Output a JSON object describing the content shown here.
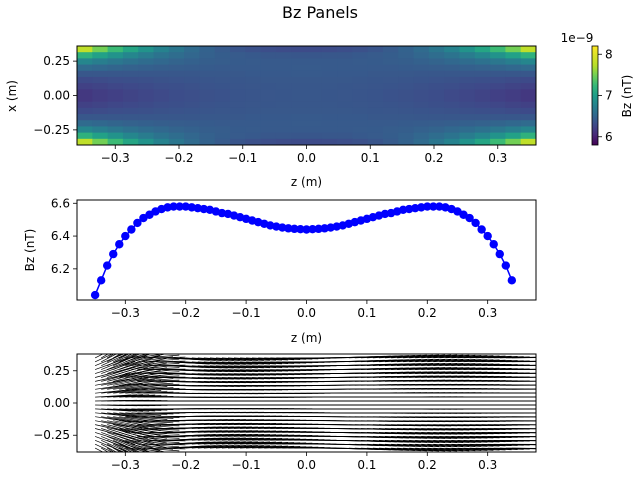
{
  "figure": {
    "title": "Bz Panels"
  },
  "chart_data": [
    {
      "type": "heatmap",
      "xlabel": "z (m)",
      "ylabel": "x (m)",
      "xlim": [
        -0.36,
        0.36
      ],
      "ylim": [
        -0.36,
        0.36
      ],
      "x_ticks": [
        -0.3,
        -0.2,
        -0.1,
        0.0,
        0.1,
        0.2,
        0.3
      ],
      "x_tick_labels": [
        "−0.3",
        "−0.2",
        "−0.1",
        "0.0",
        "0.1",
        "0.2",
        "0.3"
      ],
      "y_ticks": [
        0.25,
        0.0,
        -0.25
      ],
      "y_tick_labels": [
        "0.25",
        "0.00",
        "−0.25"
      ],
      "grid_size": [
        30,
        16
      ],
      "colormap": "viridis",
      "colorbar": {
        "label": "Bz (nT)",
        "offset_text": "1e−9",
        "range": [
          5.8,
          8.2
        ],
        "ticks": [
          6,
          7,
          8
        ],
        "tick_labels": [
          "6",
          "7",
          "8"
        ]
      },
      "grid": false
    },
    {
      "type": "line",
      "xlabel": "z (m)",
      "ylabel": "Bz (nT)",
      "xlim": [
        -0.38,
        0.38
      ],
      "ylim": [
        6.01,
        6.62
      ],
      "x_ticks": [
        -0.3,
        -0.2,
        -0.1,
        0.0,
        0.1,
        0.2,
        0.3
      ],
      "x_tick_labels": [
        "−0.3",
        "−0.2",
        "−0.1",
        "0.0",
        "0.1",
        "0.2",
        "0.3"
      ],
      "y_ticks": [
        6.2,
        6.4,
        6.6
      ],
      "y_tick_labels": [
        "6.2",
        "6.4",
        "6.6"
      ],
      "marker": "circle",
      "color": "#0000ff",
      "series": [
        {
          "x": [
            -0.35,
            -0.34,
            -0.33,
            -0.32,
            -0.31,
            -0.3,
            -0.29,
            -0.28,
            -0.27,
            -0.26,
            -0.25,
            -0.24,
            -0.23,
            -0.22,
            -0.21,
            -0.2,
            -0.19,
            -0.18,
            -0.17,
            -0.16,
            -0.15,
            -0.14,
            -0.13,
            -0.12,
            -0.11,
            -0.1,
            -0.09,
            -0.08,
            -0.07,
            -0.06,
            -0.05,
            -0.04,
            -0.03,
            -0.02,
            -0.01,
            0.0,
            0.01,
            0.02,
            0.03,
            0.04,
            0.05,
            0.06,
            0.07,
            0.08,
            0.09,
            0.1,
            0.11,
            0.12,
            0.13,
            0.14,
            0.15,
            0.16,
            0.17,
            0.18,
            0.19,
            0.2,
            0.21,
            0.22,
            0.23,
            0.24,
            0.25,
            0.26,
            0.27,
            0.28,
            0.29,
            0.3,
            0.31,
            0.32,
            0.33,
            0.34
          ],
          "y": [
            6.04,
            6.13,
            6.22,
            6.29,
            6.35,
            6.4,
            6.44,
            6.48,
            6.51,
            6.53,
            6.55,
            6.565,
            6.575,
            6.58,
            6.58,
            6.58,
            6.575,
            6.57,
            6.565,
            6.56,
            6.55,
            6.54,
            6.535,
            6.525,
            6.515,
            6.505,
            6.495,
            6.485,
            6.475,
            6.465,
            6.458,
            6.452,
            6.447,
            6.444,
            6.442,
            6.44,
            6.442,
            6.444,
            6.447,
            6.452,
            6.458,
            6.465,
            6.475,
            6.485,
            6.495,
            6.505,
            6.515,
            6.525,
            6.535,
            6.54,
            6.55,
            6.56,
            6.565,
            6.57,
            6.575,
            6.58,
            6.58,
            6.58,
            6.575,
            6.565,
            6.55,
            6.53,
            6.51,
            6.48,
            6.44,
            6.4,
            6.35,
            6.29,
            6.22,
            6.13
          ]
        }
      ],
      "grid": false
    },
    {
      "type": "quiver",
      "xlim": [
        -0.38,
        0.38
      ],
      "ylim": [
        -0.38,
        0.38
      ],
      "x_ticks": [
        -0.3,
        -0.2,
        -0.1,
        0.0,
        0.1,
        0.2,
        0.3
      ],
      "x_tick_labels": [
        "−0.3",
        "−0.2",
        "−0.1",
        "0.0",
        "0.1",
        "0.2",
        "0.3"
      ],
      "y_ticks": [
        0.25,
        0.0,
        -0.25
      ],
      "y_tick_labels": [
        "0.25",
        "0.00",
        "−0.25"
      ],
      "arrow_color": "#000000",
      "grid": false
    }
  ]
}
